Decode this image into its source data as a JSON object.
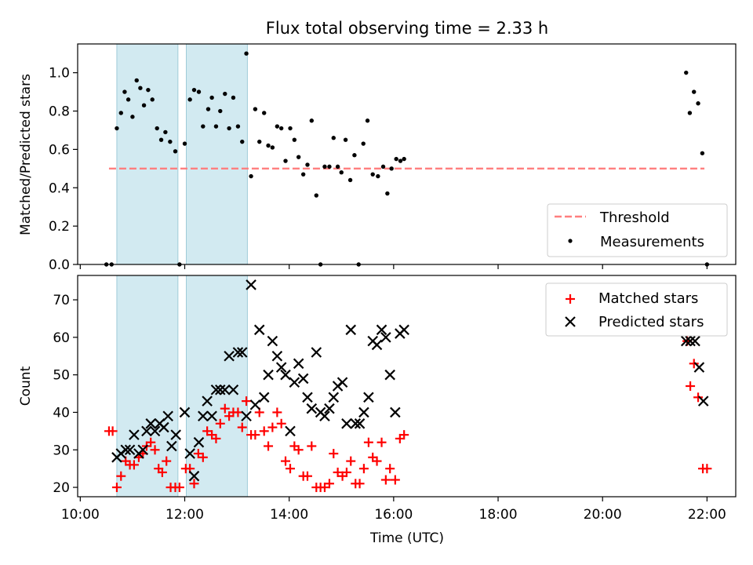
{
  "figure": {
    "title": "Flux total observing time = 2.33 h"
  },
  "chart_data": [
    {
      "type": "scatter",
      "panel": "top",
      "ylabel": "Matched/Predicted stars",
      "xlabel": "",
      "x_unit": "hours UTC",
      "xlim": [
        9.95,
        22.55
      ],
      "ylim": [
        0.0,
        1.15
      ],
      "yticks": [
        0.0,
        0.2,
        0.4,
        0.6,
        0.8,
        1.0
      ],
      "ytick_labels": [
        "0.0",
        "0.2",
        "0.4",
        "0.6",
        "0.8",
        "1.0"
      ],
      "legend_position": "lower-right",
      "shaded_intervals": [
        [
          10.7,
          11.87
        ],
        [
          12.03,
          13.2
        ]
      ],
      "shaded_color": "#add8e6",
      "threshold": {
        "name": "Threshold",
        "y": 0.5,
        "x_range": [
          10.55,
          21.95
        ],
        "color": "#ff7f7f"
      },
      "series": [
        {
          "name": "Measurements",
          "marker": "dot",
          "color": "#000000",
          "points": [
            [
              10.5,
              0.0
            ],
            [
              10.6,
              0.0
            ],
            [
              10.7,
              0.71
            ],
            [
              10.78,
              0.79
            ],
            [
              10.85,
              0.9
            ],
            [
              10.92,
              0.86
            ],
            [
              11.0,
              0.77
            ],
            [
              11.08,
              0.96
            ],
            [
              11.15,
              0.92
            ],
            [
              11.22,
              0.83
            ],
            [
              11.3,
              0.91
            ],
            [
              11.38,
              0.86
            ],
            [
              11.47,
              0.71
            ],
            [
              11.55,
              0.65
            ],
            [
              11.63,
              0.69
            ],
            [
              11.72,
              0.64
            ],
            [
              11.82,
              0.59
            ],
            [
              11.9,
              0.0
            ],
            [
              12.0,
              0.63
            ],
            [
              12.1,
              0.86
            ],
            [
              12.18,
              0.91
            ],
            [
              12.27,
              0.9
            ],
            [
              12.35,
              0.72
            ],
            [
              12.45,
              0.81
            ],
            [
              12.52,
              0.87
            ],
            [
              12.6,
              0.72
            ],
            [
              12.68,
              0.8
            ],
            [
              12.77,
              0.89
            ],
            [
              12.85,
              0.71
            ],
            [
              12.93,
              0.87
            ],
            [
              13.02,
              0.72
            ],
            [
              13.1,
              0.64
            ],
            [
              13.18,
              1.1
            ],
            [
              13.27,
              0.46
            ],
            [
              13.35,
              0.81
            ],
            [
              13.43,
              0.64
            ],
            [
              13.52,
              0.79
            ],
            [
              13.6,
              0.62
            ],
            [
              13.68,
              0.61
            ],
            [
              13.77,
              0.72
            ],
            [
              13.85,
              0.71
            ],
            [
              13.93,
              0.54
            ],
            [
              14.02,
              0.71
            ],
            [
              14.1,
              0.65
            ],
            [
              14.18,
              0.56
            ],
            [
              14.27,
              0.47
            ],
            [
              14.35,
              0.52
            ],
            [
              14.43,
              0.75
            ],
            [
              14.52,
              0.36
            ],
            [
              14.6,
              0.0
            ],
            [
              14.68,
              0.51
            ],
            [
              14.77,
              0.51
            ],
            [
              14.85,
              0.66
            ],
            [
              14.93,
              0.51
            ],
            [
              15.0,
              0.48
            ],
            [
              15.08,
              0.65
            ],
            [
              15.17,
              0.44
            ],
            [
              15.25,
              0.57
            ],
            [
              15.33,
              0.0
            ],
            [
              15.42,
              0.63
            ],
            [
              15.5,
              0.75
            ],
            [
              15.6,
              0.47
            ],
            [
              15.7,
              0.46
            ],
            [
              15.8,
              0.51
            ],
            [
              15.88,
              0.37
            ],
            [
              15.96,
              0.5
            ],
            [
              16.05,
              0.55
            ],
            [
              16.13,
              0.54
            ],
            [
              16.2,
              0.55
            ],
            [
              21.6,
              1.0
            ],
            [
              21.67,
              0.79
            ],
            [
              21.75,
              0.9
            ],
            [
              21.83,
              0.84
            ],
            [
              21.91,
              0.58
            ],
            [
              22.0,
              0.0
            ]
          ]
        }
      ]
    },
    {
      "type": "scatter",
      "panel": "bottom",
      "ylabel": "Count",
      "xlabel": "Time (UTC)",
      "x_unit": "hours UTC",
      "xlim": [
        9.95,
        22.55
      ],
      "ylim": [
        17.5,
        76.5
      ],
      "yticks": [
        20,
        30,
        40,
        50,
        60,
        70
      ],
      "ytick_labels": [
        "20",
        "30",
        "40",
        "50",
        "60",
        "70"
      ],
      "xticks": [
        10,
        12,
        14,
        16,
        18,
        20,
        22
      ],
      "xtick_labels": [
        "10:00",
        "12:00",
        "14:00",
        "16:00",
        "18:00",
        "20:00",
        "22:00"
      ],
      "legend_position": "upper-right",
      "shaded_intervals": [
        [
          10.7,
          11.87
        ],
        [
          12.03,
          13.2
        ]
      ],
      "shaded_color": "#add8e6",
      "series": [
        {
          "name": "Matched stars",
          "marker": "plus",
          "color": "#ff0000",
          "points": [
            [
              10.55,
              35
            ],
            [
              10.62,
              35
            ],
            [
              10.7,
              20
            ],
            [
              10.78,
              23
            ],
            [
              10.87,
              27
            ],
            [
              10.95,
              26
            ],
            [
              11.03,
              26
            ],
            [
              11.12,
              28
            ],
            [
              11.2,
              29
            ],
            [
              11.27,
              31
            ],
            [
              11.35,
              32
            ],
            [
              11.43,
              30
            ],
            [
              11.5,
              25
            ],
            [
              11.57,
              24
            ],
            [
              11.65,
              27
            ],
            [
              11.73,
              20
            ],
            [
              11.82,
              20
            ],
            [
              11.9,
              20
            ],
            [
              12.02,
              25
            ],
            [
              12.1,
              25
            ],
            [
              12.18,
              21
            ],
            [
              12.26,
              29
            ],
            [
              12.35,
              28
            ],
            [
              12.43,
              35
            ],
            [
              12.52,
              34
            ],
            [
              12.6,
              33
            ],
            [
              12.68,
              37
            ],
            [
              12.77,
              41
            ],
            [
              12.85,
              39
            ],
            [
              12.93,
              40
            ],
            [
              13.02,
              40
            ],
            [
              13.1,
              36
            ],
            [
              13.18,
              43
            ],
            [
              13.27,
              34
            ],
            [
              13.35,
              34
            ],
            [
              13.43,
              40
            ],
            [
              13.52,
              35
            ],
            [
              13.6,
              31
            ],
            [
              13.68,
              36
            ],
            [
              13.77,
              40
            ],
            [
              13.85,
              37
            ],
            [
              13.93,
              27
            ],
            [
              14.02,
              25
            ],
            [
              14.1,
              31
            ],
            [
              14.18,
              30
            ],
            [
              14.27,
              23
            ],
            [
              14.35,
              23
            ],
            [
              14.43,
              31
            ],
            [
              14.52,
              20
            ],
            [
              14.6,
              20
            ],
            [
              14.68,
              20
            ],
            [
              14.77,
              21
            ],
            [
              14.85,
              29
            ],
            [
              14.93,
              24
            ],
            [
              15.02,
              23
            ],
            [
              15.1,
              24
            ],
            [
              15.18,
              27
            ],
            [
              15.27,
              21
            ],
            [
              15.35,
              21
            ],
            [
              15.43,
              25
            ],
            [
              15.52,
              32
            ],
            [
              15.6,
              28
            ],
            [
              15.68,
              27
            ],
            [
              15.77,
              32
            ],
            [
              15.85,
              22
            ],
            [
              15.93,
              25
            ],
            [
              16.03,
              22
            ],
            [
              16.12,
              33
            ],
            [
              16.2,
              34
            ],
            [
              21.62,
              59
            ],
            [
              21.68,
              47
            ],
            [
              21.75,
              53
            ],
            [
              21.83,
              44
            ],
            [
              21.92,
              25
            ],
            [
              22.0,
              25
            ]
          ]
        },
        {
          "name": "Predicted stars",
          "marker": "x",
          "color": "#000000",
          "points": [
            [
              10.7,
              28
            ],
            [
              10.78,
              29
            ],
            [
              10.87,
              30
            ],
            [
              10.95,
              30
            ],
            [
              11.03,
              34
            ],
            [
              11.12,
              29
            ],
            [
              11.2,
              30
            ],
            [
              11.27,
              35
            ],
            [
              11.35,
              37
            ],
            [
              11.43,
              35
            ],
            [
              11.52,
              37
            ],
            [
              11.6,
              36
            ],
            [
              11.68,
              39
            ],
            [
              11.75,
              31
            ],
            [
              11.83,
              34
            ],
            [
              12.0,
              40
            ],
            [
              12.1,
              29
            ],
            [
              12.18,
              23
            ],
            [
              12.27,
              32
            ],
            [
              12.35,
              39
            ],
            [
              12.43,
              43
            ],
            [
              12.52,
              39
            ],
            [
              12.6,
              46
            ],
            [
              12.68,
              46
            ],
            [
              12.77,
              46
            ],
            [
              12.85,
              55
            ],
            [
              12.93,
              46
            ],
            [
              13.02,
              56
            ],
            [
              13.1,
              56
            ],
            [
              13.18,
              39
            ],
            [
              13.27,
              74
            ],
            [
              13.35,
              42
            ],
            [
              13.43,
              62
            ],
            [
              13.52,
              44
            ],
            [
              13.6,
              50
            ],
            [
              13.68,
              59
            ],
            [
              13.77,
              55
            ],
            [
              13.85,
              52
            ],
            [
              13.93,
              50
            ],
            [
              14.02,
              35
            ],
            [
              14.1,
              48
            ],
            [
              14.18,
              53
            ],
            [
              14.27,
              49
            ],
            [
              14.35,
              44
            ],
            [
              14.43,
              41
            ],
            [
              14.52,
              56
            ],
            [
              14.6,
              40
            ],
            [
              14.68,
              39
            ],
            [
              14.77,
              41
            ],
            [
              14.85,
              44
            ],
            [
              14.93,
              47
            ],
            [
              15.02,
              48
            ],
            [
              15.1,
              37
            ],
            [
              15.18,
              62
            ],
            [
              15.27,
              37
            ],
            [
              15.35,
              37
            ],
            [
              15.43,
              40
            ],
            [
              15.52,
              44
            ],
            [
              15.6,
              59
            ],
            [
              15.68,
              58
            ],
            [
              15.77,
              62
            ],
            [
              15.85,
              60
            ],
            [
              15.93,
              50
            ],
            [
              16.03,
              40
            ],
            [
              16.12,
              61
            ],
            [
              16.2,
              62
            ],
            [
              21.6,
              59
            ],
            [
              21.68,
              59
            ],
            [
              21.77,
              59
            ],
            [
              21.85,
              52
            ],
            [
              21.93,
              43
            ]
          ]
        }
      ]
    }
  ]
}
